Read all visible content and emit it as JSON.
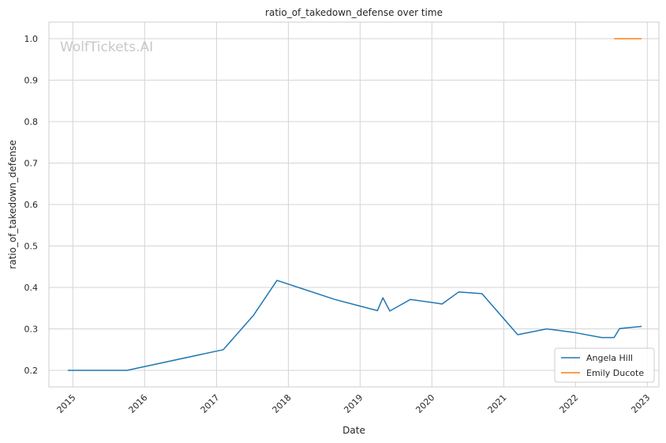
{
  "chart_data": {
    "type": "line",
    "title": "ratio_of_takedown_defense over time",
    "xlabel": "Date",
    "ylabel": "ratio_of_takedown_defense",
    "watermark": "WolfTickets.AI",
    "xlim": [
      "2014-09-01",
      "2023-03-01"
    ],
    "ylim": [
      0.16,
      1.04
    ],
    "x_ticks": [
      "2015",
      "2016",
      "2017",
      "2018",
      "2019",
      "2020",
      "2021",
      "2022",
      "2023"
    ],
    "y_ticks": [
      "0.2",
      "0.3",
      "0.4",
      "0.5",
      "0.6",
      "0.7",
      "0.8",
      "0.9",
      "1.0"
    ],
    "grid": true,
    "legend_position": "lower-right",
    "series": [
      {
        "name": "Angela Hill",
        "color": "#1f77b4",
        "points": [
          {
            "x": "2014-12-06",
            "y": 0.2
          },
          {
            "x": "2015-10-03",
            "y": 0.2
          },
          {
            "x": "2017-02-04",
            "y": 0.25
          },
          {
            "x": "2017-07-08",
            "y": 0.333
          },
          {
            "x": "2017-11-04",
            "y": 0.417
          },
          {
            "x": "2018-08-25",
            "y": 0.371
          },
          {
            "x": "2019-03-30",
            "y": 0.344
          },
          {
            "x": "2019-04-27",
            "y": 0.375
          },
          {
            "x": "2019-06-01",
            "y": 0.343
          },
          {
            "x": "2019-09-14",
            "y": 0.371
          },
          {
            "x": "2020-01-25",
            "y": 0.362
          },
          {
            "x": "2020-02-22",
            "y": 0.36
          },
          {
            "x": "2020-05-16",
            "y": 0.389
          },
          {
            "x": "2020-09-12",
            "y": 0.385
          },
          {
            "x": "2021-03-13",
            "y": 0.286
          },
          {
            "x": "2021-08-07",
            "y": 0.3
          },
          {
            "x": "2021-12-18",
            "y": 0.292
          },
          {
            "x": "2022-05-14",
            "y": 0.279
          },
          {
            "x": "2022-07-16",
            "y": 0.279
          },
          {
            "x": "2022-08-13",
            "y": 0.301
          },
          {
            "x": "2022-12-03",
            "y": 0.306
          }
        ]
      },
      {
        "name": "Emily Ducote",
        "color": "#ff7f0e",
        "points": [
          {
            "x": "2022-07-16",
            "y": 1.0
          },
          {
            "x": "2022-12-03",
            "y": 1.0
          }
        ]
      }
    ]
  }
}
